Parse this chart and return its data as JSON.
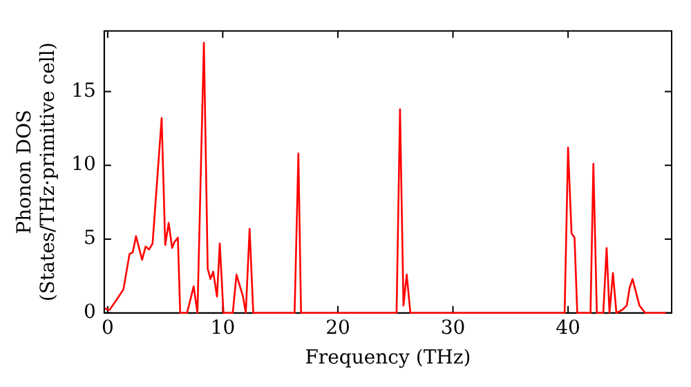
{
  "chart_data": {
    "type": "line",
    "xlabel": "Frequency (THz)",
    "ylabel": "Phonon DOS\n(States/THz·primitive cell)",
    "x": [
      -0.25,
      0.15,
      0.7,
      1.37,
      1.9,
      2.18,
      2.46,
      2.99,
      3.3,
      3.6,
      3.9,
      4.69,
      5.0,
      5.3,
      5.6,
      5.8,
      6.1,
      6.3,
      6.9,
      7.47,
      7.8,
      8.36,
      8.69,
      8.93,
      9.17,
      9.5,
      9.74,
      10.06,
      10.87,
      11.19,
      11.76,
      12.0,
      12.33,
      12.65,
      16.24,
      16.57,
      16.8,
      25.1,
      25.4,
      25.7,
      25.98,
      26.3,
      39.7,
      40.0,
      40.3,
      40.56,
      40.8,
      41.95,
      42.2,
      42.5,
      43.06,
      43.35,
      43.6,
      43.9,
      44.2,
      44.7,
      45.1,
      45.35,
      45.6,
      45.9,
      46.2,
      46.7,
      48.5
    ],
    "series": [
      {
        "color": "#ff0000",
        "values": [
          0.3,
          0.2,
          0.8,
          1.6,
          4.0,
          4.1,
          5.2,
          3.6,
          4.5,
          4.3,
          4.7,
          13.2,
          4.6,
          6.1,
          4.4,
          4.8,
          5.1,
          0,
          0,
          1.8,
          0,
          18.3,
          3.0,
          2.3,
          2.8,
          1.1,
          4.7,
          0,
          0,
          2.6,
          1.1,
          0,
          5.7,
          0,
          0,
          10.8,
          0,
          0,
          13.8,
          0.5,
          2.6,
          0,
          0,
          11.2,
          5.4,
          5.1,
          0,
          0,
          10.1,
          0,
          0,
          4.4,
          0,
          2.7,
          0,
          0.2,
          0.5,
          1.7,
          2.3,
          1.4,
          0.5,
          0,
          0
        ]
      }
    ],
    "xlim": [
      -0.3,
      49
    ],
    "xticks": [
      0,
      10,
      20,
      30,
      40
    ],
    "ylim": [
      0,
      19.1
    ],
    "yticks": [
      0,
      5,
      10,
      15
    ],
    "grid": false,
    "legend": false,
    "marker": "none",
    "line_style": "solid"
  }
}
